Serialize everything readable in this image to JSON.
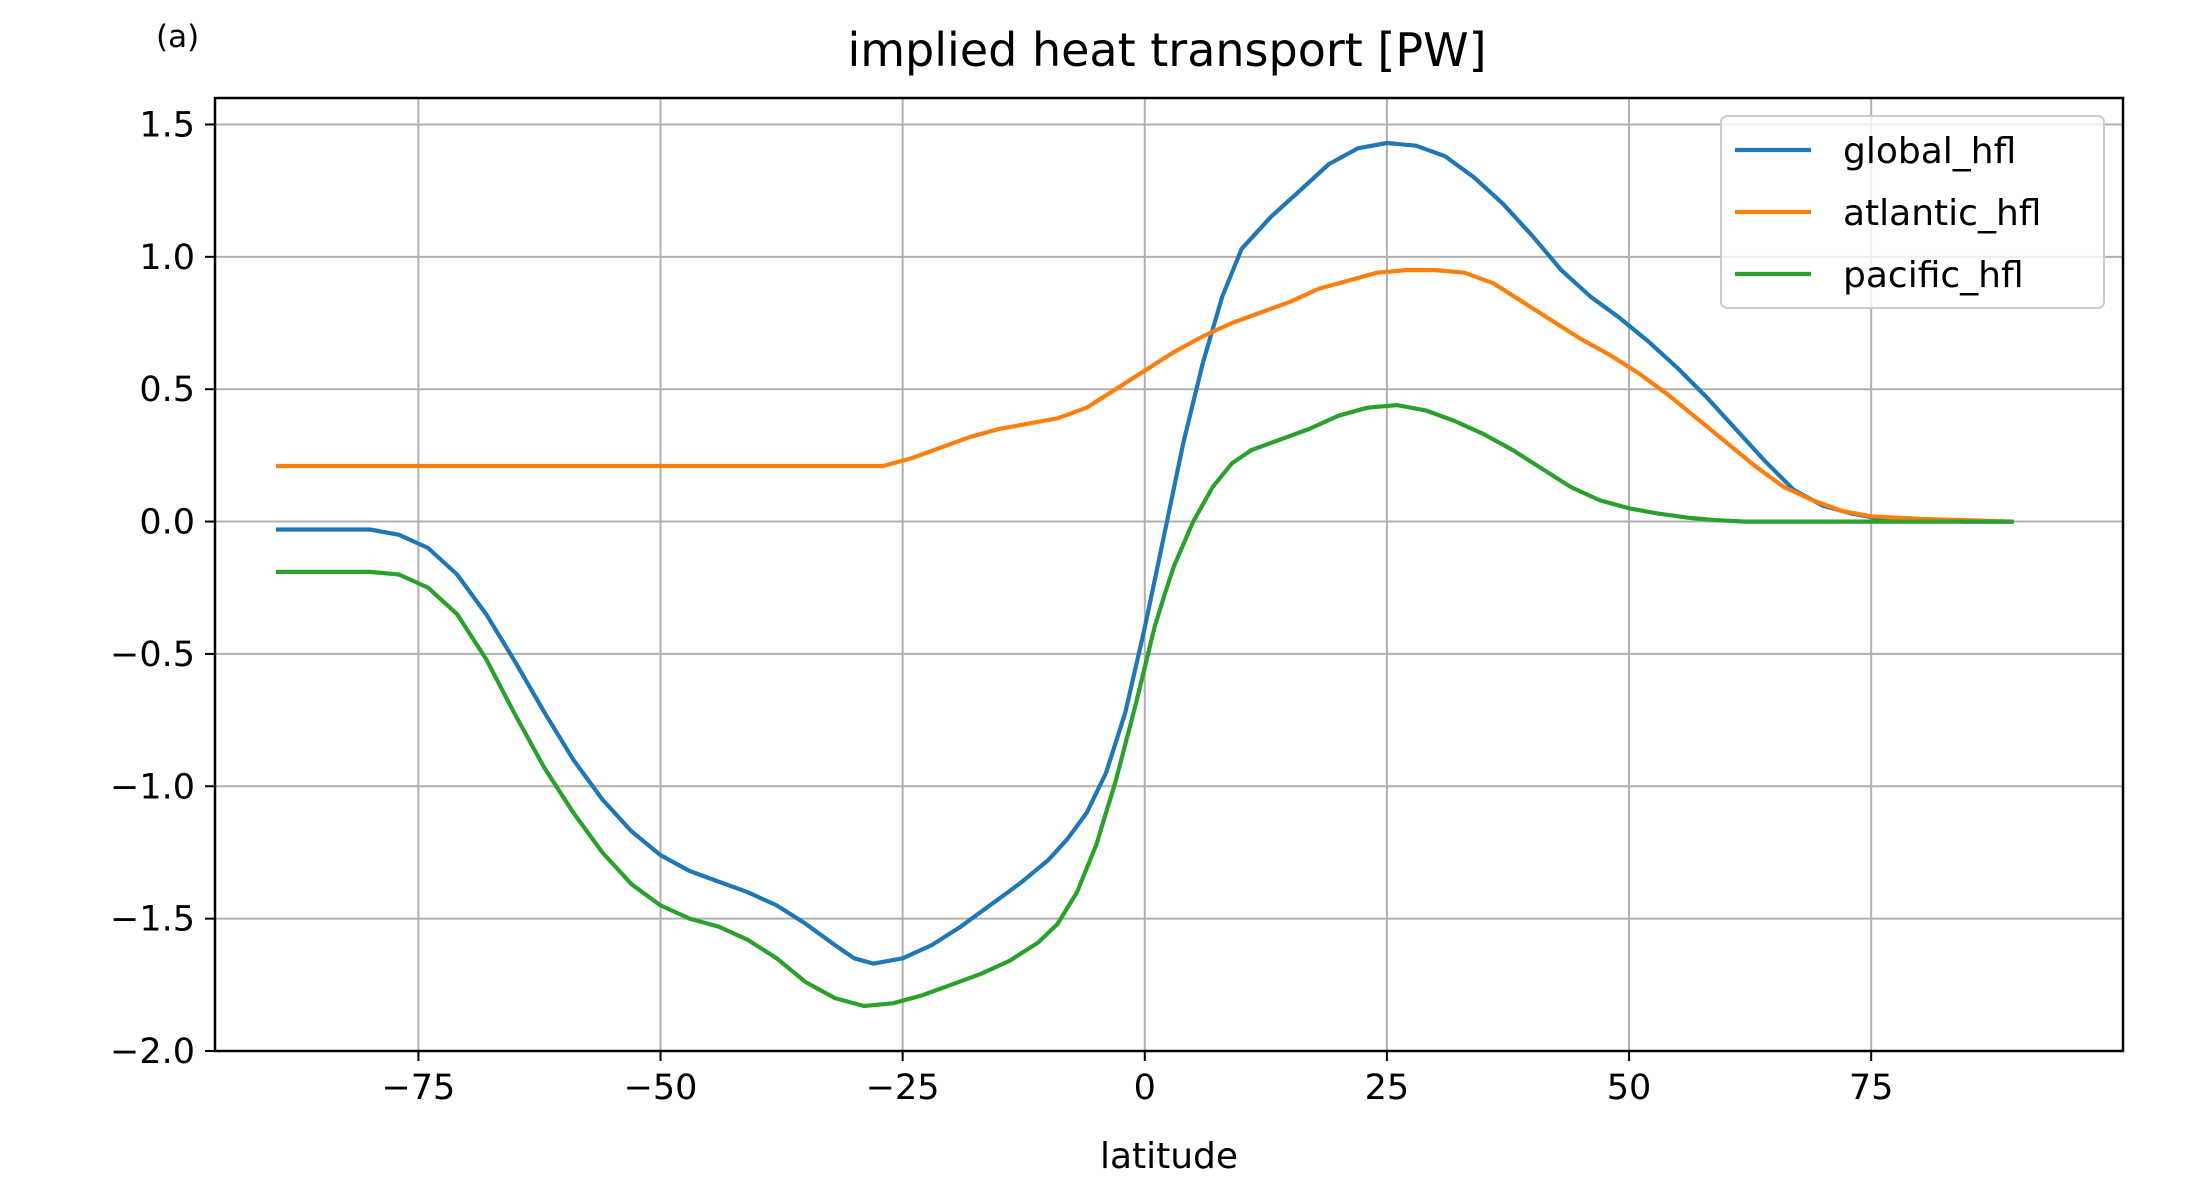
{
  "panel_label": "(a)",
  "chart_data": {
    "type": "line",
    "title": "implied heat transport [PW]",
    "xlabel": "latitude",
    "ylabel": "",
    "xlim": [
      -96,
      101
    ],
    "ylim": [
      -2.0,
      1.6
    ],
    "xticks": [
      -75,
      -50,
      -25,
      0,
      25,
      50,
      75
    ],
    "xtick_labels": [
      "−75",
      "−50",
      "−25",
      "0",
      "25",
      "50",
      "75"
    ],
    "yticks": [
      1.5,
      1.0,
      0.5,
      0.0,
      -0.5,
      -1.0,
      -1.5,
      -2.0
    ],
    "ytick_labels": [
      "1.5",
      "1.0",
      "0.5",
      "0.0",
      "−0.5",
      "−1.0",
      "−1.5",
      "−2.0"
    ],
    "grid": true,
    "legend_position": "top-right",
    "series": [
      {
        "name": "global_hfl",
        "color": "#1f77b4",
        "x": [
          -89.5,
          -84,
          -80,
          -77,
          -74,
          -71,
          -68,
          -65,
          -62,
          -59,
          -56,
          -53,
          -50,
          -47,
          -44,
          -41,
          -38,
          -35,
          -32,
          -30,
          -28,
          -25,
          -22,
          -19,
          -16,
          -13,
          -10,
          -8,
          -6,
          -4,
          -2,
          0,
          2,
          4,
          6,
          8,
          10,
          13,
          16,
          19,
          22,
          25,
          28,
          31,
          34,
          37,
          40,
          43,
          46,
          49,
          52,
          55,
          58,
          61,
          64,
          67,
          70,
          73,
          76,
          80,
          85,
          89.5
        ],
        "y": [
          -0.03,
          -0.03,
          -0.03,
          -0.05,
          -0.1,
          -0.2,
          -0.35,
          -0.53,
          -0.72,
          -0.9,
          -1.05,
          -1.17,
          -1.26,
          -1.32,
          -1.36,
          -1.4,
          -1.45,
          -1.52,
          -1.6,
          -1.65,
          -1.67,
          -1.65,
          -1.6,
          -1.53,
          -1.45,
          -1.37,
          -1.28,
          -1.2,
          -1.1,
          -0.95,
          -0.72,
          -0.4,
          -0.05,
          0.3,
          0.6,
          0.85,
          1.03,
          1.15,
          1.25,
          1.35,
          1.41,
          1.43,
          1.42,
          1.38,
          1.3,
          1.2,
          1.08,
          0.95,
          0.85,
          0.77,
          0.68,
          0.58,
          0.47,
          0.35,
          0.23,
          0.12,
          0.06,
          0.03,
          0.01,
          0.005,
          0.0,
          0.0
        ]
      },
      {
        "name": "atlantic_hfl",
        "color": "#ff7f0e",
        "x": [
          -89.5,
          -80,
          -70,
          -60,
          -50,
          -40,
          -30,
          -27,
          -24,
          -21,
          -18,
          -15,
          -12,
          -9,
          -6,
          -3,
          0,
          3,
          6,
          9,
          12,
          15,
          18,
          21,
          24,
          27,
          30,
          33,
          36,
          39,
          42,
          45,
          48,
          51,
          54,
          57,
          60,
          63,
          66,
          69,
          72,
          75,
          80,
          85,
          89.5
        ],
        "y": [
          0.21,
          0.21,
          0.21,
          0.21,
          0.21,
          0.21,
          0.21,
          0.21,
          0.24,
          0.28,
          0.32,
          0.35,
          0.37,
          0.39,
          0.43,
          0.5,
          0.57,
          0.64,
          0.7,
          0.75,
          0.79,
          0.83,
          0.88,
          0.91,
          0.94,
          0.95,
          0.95,
          0.94,
          0.9,
          0.83,
          0.76,
          0.69,
          0.63,
          0.56,
          0.48,
          0.39,
          0.3,
          0.21,
          0.13,
          0.08,
          0.04,
          0.02,
          0.01,
          0.005,
          0.0
        ]
      },
      {
        "name": "pacific_hfl",
        "color": "#2ca02c",
        "x": [
          -89.5,
          -84,
          -80,
          -77,
          -74,
          -71,
          -68,
          -65,
          -62,
          -59,
          -56,
          -53,
          -50,
          -47,
          -44,
          -41,
          -38,
          -35,
          -32,
          -29,
          -26,
          -23,
          -20,
          -17,
          -14,
          -11,
          -9,
          -7,
          -5,
          -3,
          -1,
          0,
          1,
          2,
          3,
          5,
          7,
          9,
          11,
          14,
          17,
          20,
          23,
          26,
          29,
          32,
          35,
          38,
          41,
          44,
          47,
          50,
          53,
          56,
          59,
          62,
          65,
          70,
          75,
          80,
          85,
          89.5
        ],
        "y": [
          -0.19,
          -0.19,
          -0.19,
          -0.2,
          -0.25,
          -0.35,
          -0.52,
          -0.73,
          -0.93,
          -1.1,
          -1.25,
          -1.37,
          -1.45,
          -1.5,
          -1.53,
          -1.58,
          -1.65,
          -1.74,
          -1.8,
          -1.83,
          -1.82,
          -1.79,
          -1.75,
          -1.71,
          -1.66,
          -1.59,
          -1.52,
          -1.4,
          -1.22,
          -0.98,
          -0.7,
          -0.55,
          -0.4,
          -0.28,
          -0.17,
          0.0,
          0.13,
          0.22,
          0.27,
          0.31,
          0.35,
          0.4,
          0.43,
          0.44,
          0.42,
          0.38,
          0.33,
          0.27,
          0.2,
          0.13,
          0.08,
          0.05,
          0.03,
          0.015,
          0.005,
          0.0,
          0.0,
          0.0,
          0.0,
          0.0,
          0.0,
          0.0
        ]
      }
    ]
  }
}
